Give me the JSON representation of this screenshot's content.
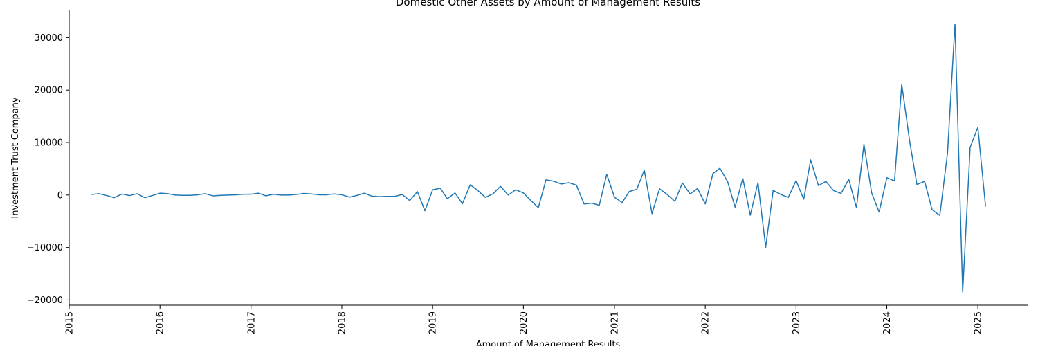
{
  "chart_data": {
    "type": "line",
    "title": "Domestic Other Assets by Amount of Management Results",
    "xlabel": "Amount of Management Results",
    "ylabel": "Investment Trust Company",
    "xlim": [
      "2015-01-01",
      "2025-07-20"
    ],
    "ylim": [
      -21000,
      35200
    ],
    "x_ticks": [
      {
        "label": "2015",
        "date": "2015-01-01"
      },
      {
        "label": "2016",
        "date": "2016-01-01"
      },
      {
        "label": "2017",
        "date": "2017-01-01"
      },
      {
        "label": "2018",
        "date": "2018-01-01"
      },
      {
        "label": "2019",
        "date": "2019-01-01"
      },
      {
        "label": "2020",
        "date": "2020-01-01"
      },
      {
        "label": "2021",
        "date": "2021-01-01"
      },
      {
        "label": "2022",
        "date": "2022-01-01"
      },
      {
        "label": "2023",
        "date": "2023-01-01"
      },
      {
        "label": "2024",
        "date": "2024-01-01"
      },
      {
        "label": "2025",
        "date": "2025-01-01"
      }
    ],
    "y_ticks": [
      {
        "label": "30000",
        "value": 30000
      },
      {
        "label": "20000",
        "value": 20000
      },
      {
        "label": "10000",
        "value": 10000
      },
      {
        "label": "0",
        "value": 0
      },
      {
        "label": "−10000",
        "value": -10000
      },
      {
        "label": "−20000",
        "value": -20000
      }
    ],
    "grid": false,
    "series": [
      {
        "color": "#1f77b4",
        "x": [
          "2015-04",
          "2015-05",
          "2015-06",
          "2015-07",
          "2015-08",
          "2015-09",
          "2015-10",
          "2015-11",
          "2015-12",
          "2016-01",
          "2016-02",
          "2016-03",
          "2016-04",
          "2016-05",
          "2016-06",
          "2016-07",
          "2016-08",
          "2016-09",
          "2016-10",
          "2016-11",
          "2016-12",
          "2017-01",
          "2017-02",
          "2017-03",
          "2017-04",
          "2017-05",
          "2017-06",
          "2017-07",
          "2017-08",
          "2017-09",
          "2017-10",
          "2017-11",
          "2017-12",
          "2018-01",
          "2018-02",
          "2018-03",
          "2018-04",
          "2018-05",
          "2018-06",
          "2018-07",
          "2018-08",
          "2018-09",
          "2018-10",
          "2018-11",
          "2018-12",
          "2019-01",
          "2019-02",
          "2019-03",
          "2019-04",
          "2019-05",
          "2019-06",
          "2019-07",
          "2019-08",
          "2019-09",
          "2019-10",
          "2019-11",
          "2019-12",
          "2020-01",
          "2020-02",
          "2020-03",
          "2020-04",
          "2020-05",
          "2020-06",
          "2020-07",
          "2020-08",
          "2020-09",
          "2020-10",
          "2020-11",
          "2020-12",
          "2021-01",
          "2021-02",
          "2021-03",
          "2021-04",
          "2021-05",
          "2021-06",
          "2021-07",
          "2021-08",
          "2021-09",
          "2021-10",
          "2021-11",
          "2021-12",
          "2022-01",
          "2022-02",
          "2022-03",
          "2022-04",
          "2022-05",
          "2022-06",
          "2022-07",
          "2022-08",
          "2022-09",
          "2022-10",
          "2022-11",
          "2022-12",
          "2023-01",
          "2023-02",
          "2023-03",
          "2023-04",
          "2023-05",
          "2023-06",
          "2023-07",
          "2023-08",
          "2023-09",
          "2023-10",
          "2023-11",
          "2023-12",
          "2024-01",
          "2024-02",
          "2024-03",
          "2024-04",
          "2024-05",
          "2024-06",
          "2024-07",
          "2024-08",
          "2024-09",
          "2024-10",
          "2024-11",
          "2024-12",
          "2025-01",
          "2025-02"
        ],
        "values": [
          100,
          250,
          -100,
          -500,
          200,
          -100,
          250,
          -500,
          -100,
          350,
          250,
          0,
          -50,
          -50,
          50,
          250,
          -150,
          -50,
          0,
          50,
          150,
          150,
          350,
          -150,
          150,
          0,
          0,
          100,
          300,
          200,
          50,
          50,
          200,
          50,
          -400,
          -100,
          350,
          -200,
          -300,
          -250,
          -250,
          100,
          -1050,
          650,
          -3000,
          1000,
          1300,
          -700,
          400,
          -1650,
          1950,
          900,
          -450,
          250,
          1650,
          0,
          1000,
          400,
          -1100,
          -2400,
          2900,
          2650,
          2100,
          2350,
          1900,
          -1700,
          -1550,
          -1950,
          3950,
          -400,
          -1450,
          650,
          1100,
          4750,
          -3550,
          1200,
          100,
          -1200,
          2300,
          200,
          1250,
          -1700,
          4100,
          5100,
          2550,
          -2300,
          3200,
          -3850,
          2350,
          -9950,
          900,
          100,
          -450,
          2750,
          -800,
          6700,
          1800,
          2600,
          850,
          300,
          3000,
          -2400,
          9700,
          400,
          -3250,
          3300,
          2700,
          21100,
          10500,
          2000,
          2600,
          -2800,
          -3900,
          8000,
          32600,
          -18500,
          9100,
          12900,
          -2200
        ]
      }
    ]
  }
}
